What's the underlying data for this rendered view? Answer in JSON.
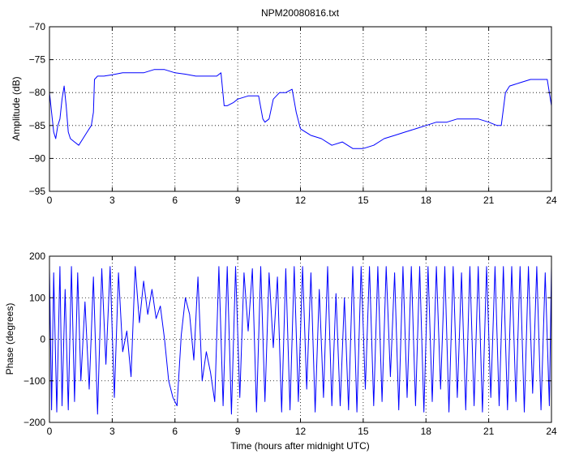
{
  "chart_data": [
    {
      "type": "line",
      "title": "NPM20080816.txt",
      "xlabel": "",
      "ylabel": "Amplitude (dB)",
      "xlim": [
        0,
        24
      ],
      "ylim": [
        -95,
        -70
      ],
      "xticks": [
        "0",
        "3",
        "6",
        "9",
        "12",
        "15",
        "18",
        "21",
        "24"
      ],
      "yticks": [
        "−70",
        "−75",
        "−80",
        "−85",
        "−90",
        "−95"
      ],
      "grid": "dotted",
      "color": "#0000ff",
      "series": [
        {
          "x": [
            0,
            0.1,
            0.2,
            0.3,
            0.4,
            0.5,
            0.6,
            0.7,
            0.8,
            0.9,
            1.0,
            1.2,
            1.4,
            1.6,
            1.8,
            2.0,
            2.1,
            2.15,
            2.3,
            2.6,
            3.0,
            3.5,
            4.0,
            4.5,
            5.0,
            5.5,
            6.0,
            6.5,
            7.0,
            7.5,
            8.0,
            8.2,
            8.35,
            8.5,
            8.8,
            9.0,
            9.5,
            10.0,
            10.2,
            10.3,
            10.5,
            10.7,
            11.0,
            11.3,
            11.6,
            11.8,
            12.0,
            12.5,
            13.0,
            13.5,
            14.0,
            14.5,
            15.0,
            15.5,
            16.0,
            16.5,
            17.0,
            17.5,
            18.0,
            18.5,
            19.0,
            19.5,
            20.0,
            20.5,
            21.0,
            21.4,
            21.6,
            21.8,
            22.0,
            22.5,
            23.0,
            23.5,
            23.8,
            24.0
          ],
          "y": [
            -80,
            -83,
            -86,
            -87,
            -85,
            -84,
            -81,
            -79,
            -82,
            -86,
            -87,
            -87.5,
            -88,
            -87,
            -86,
            -85,
            -83,
            -78,
            -77.5,
            -77.5,
            -77.3,
            -77,
            -77,
            -77,
            -76.5,
            -76.5,
            -77,
            -77.2,
            -77.5,
            -77.5,
            -77.5,
            -77,
            -82,
            -82,
            -81.5,
            -81,
            -80.5,
            -80.5,
            -84,
            -84.5,
            -84,
            -81,
            -80,
            -80,
            -79.5,
            -83,
            -85.5,
            -86.5,
            -87,
            -88,
            -87.5,
            -88.5,
            -88.5,
            -88,
            -87,
            -86.5,
            -86,
            -85.5,
            -85,
            -84.5,
            -84.5,
            -84,
            -84,
            -84,
            -84.5,
            -85,
            -85,
            -80,
            -79,
            -78.5,
            -78,
            -78,
            -78,
            -82
          ]
        }
      ]
    },
    {
      "type": "line",
      "title": "",
      "xlabel": "Time (hours after midnight UTC)",
      "ylabel": "Phase (degrees)",
      "xlim": [
        0,
        24
      ],
      "ylim": [
        -200,
        200
      ],
      "xticks": [
        "0",
        "3",
        "6",
        "9",
        "12",
        "15",
        "18",
        "21",
        "24"
      ],
      "yticks": [
        "200",
        "100",
        "0",
        "−100",
        "−200"
      ],
      "grid": "dotted",
      "color": "#0000ff",
      "series": [
        {
          "x": [
            0,
            0.1,
            0.2,
            0.35,
            0.5,
            0.6,
            0.75,
            0.9,
            1.05,
            1.2,
            1.35,
            1.5,
            1.7,
            1.9,
            2.1,
            2.3,
            2.5,
            2.7,
            2.9,
            3.1,
            3.3,
            3.5,
            3.7,
            3.9,
            4.1,
            4.3,
            4.5,
            4.7,
            4.9,
            5.1,
            5.3,
            5.5,
            5.7,
            5.9,
            6.1,
            6.3,
            6.5,
            6.7,
            6.9,
            7.1,
            7.3,
            7.5,
            7.7,
            7.9,
            8.1,
            8.3,
            8.5,
            8.7,
            8.9,
            9.1,
            9.3,
            9.5,
            9.7,
            9.9,
            10.1,
            10.3,
            10.5,
            10.7,
            10.9,
            11.1,
            11.3,
            11.5,
            11.7,
            11.9,
            12.1,
            12.3,
            12.5,
            12.7,
            12.9,
            13.1,
            13.3,
            13.5,
            13.7,
            13.9,
            14.1,
            14.3,
            14.5,
            14.7,
            14.9,
            15.1,
            15.3,
            15.5,
            15.7,
            15.9,
            16.1,
            16.3,
            16.5,
            16.7,
            16.9,
            17.1,
            17.3,
            17.5,
            17.7,
            17.9,
            18.1,
            18.3,
            18.5,
            18.7,
            18.9,
            19.1,
            19.3,
            19.5,
            19.7,
            19.9,
            20.1,
            20.3,
            20.5,
            20.7,
            20.9,
            21.1,
            21.3,
            21.5,
            21.7,
            21.9,
            22.1,
            22.3,
            22.5,
            22.7,
            22.9,
            23.1,
            23.3,
            23.5,
            23.7,
            23.9,
            24.0
          ],
          "y": [
            170,
            -170,
            160,
            -175,
            175,
            -160,
            120,
            -170,
            175,
            -150,
            160,
            -100,
            90,
            -120,
            150,
            -180,
            170,
            -60,
            175,
            -140,
            160,
            -30,
            20,
            -90,
            175,
            40,
            140,
            60,
            120,
            50,
            80,
            0,
            -100,
            -140,
            -160,
            10,
            100,
            60,
            -50,
            150,
            -100,
            -30,
            -80,
            -150,
            175,
            -160,
            175,
            -180,
            175,
            -140,
            160,
            20,
            170,
            -175,
            175,
            -150,
            160,
            -20,
            150,
            -175,
            170,
            -170,
            175,
            -150,
            175,
            -120,
            160,
            -175,
            120,
            -140,
            175,
            -160,
            110,
            -160,
            100,
            -170,
            175,
            -175,
            175,
            -120,
            175,
            -160,
            175,
            -150,
            175,
            -90,
            160,
            -170,
            175,
            -140,
            175,
            -160,
            175,
            -175,
            175,
            -150,
            175,
            -120,
            175,
            -175,
            175,
            -140,
            160,
            -170,
            175,
            -160,
            175,
            -175,
            175,
            -140,
            175,
            -160,
            175,
            -170,
            175,
            -150,
            175,
            -175,
            175,
            -130,
            175,
            -170,
            160,
            -160,
            175
          ]
        }
      ]
    }
  ]
}
